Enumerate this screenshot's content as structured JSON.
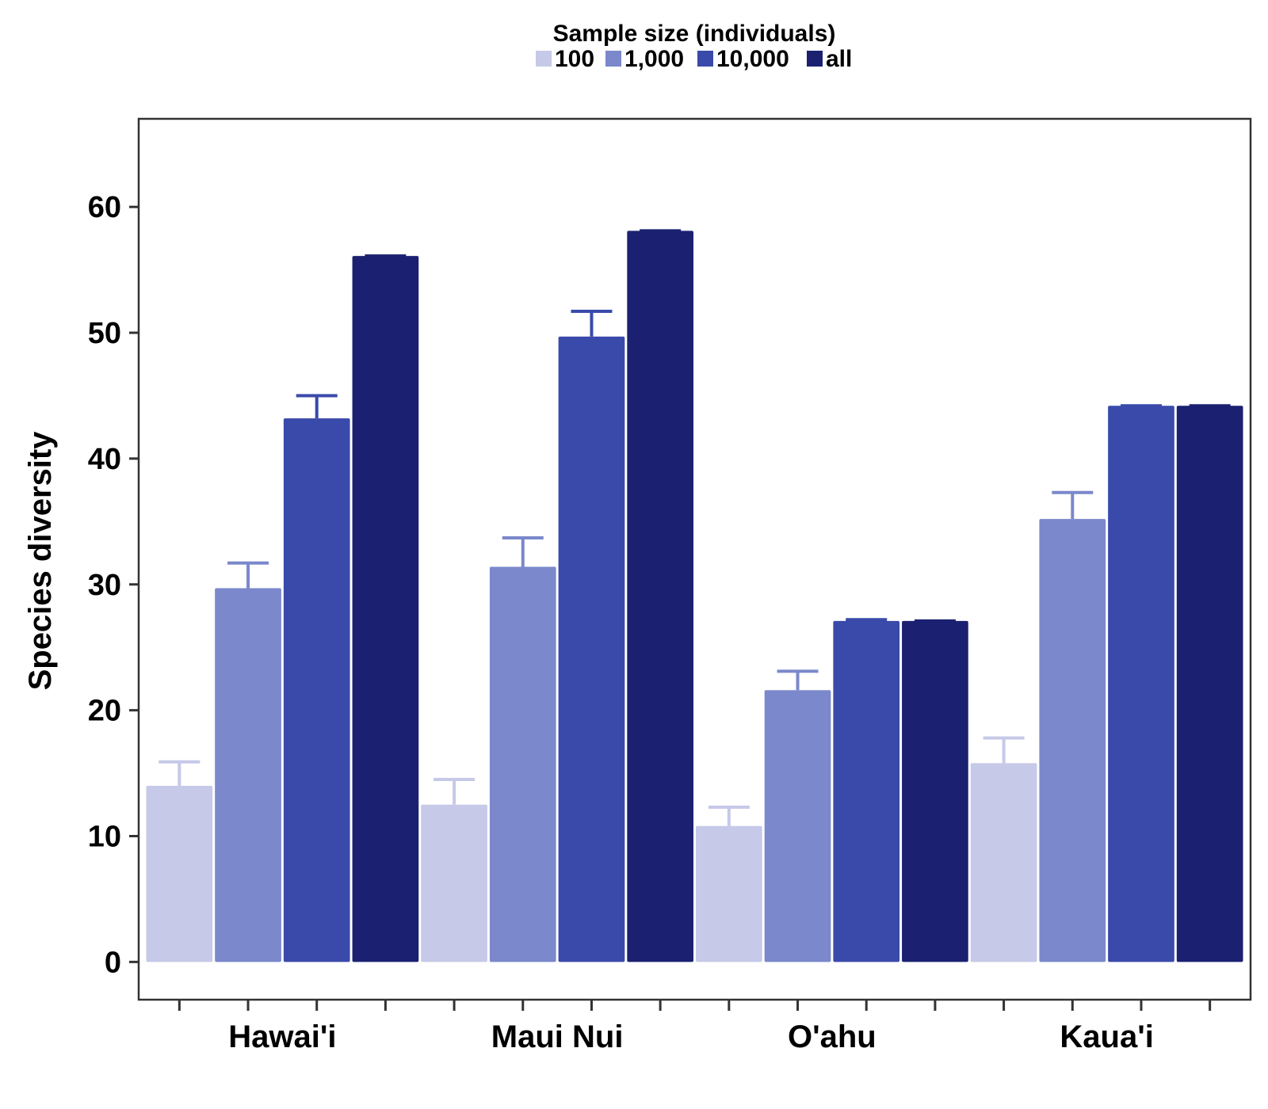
{
  "chart_data": {
    "type": "bar",
    "legend": {
      "title": "Sample size (individuals)",
      "placement": "top-center",
      "entries": [
        "100",
        "1,000",
        "10,000",
        "all"
      ]
    },
    "categories": [
      "Hawai'i",
      "Maui Nui",
      "O'ahu",
      "Kaua'i"
    ],
    "series": [
      {
        "name": "100",
        "color": "#c6c9e8",
        "values": [
          14.0,
          12.5,
          10.8,
          15.8
        ],
        "error_upper": [
          15.9,
          14.5,
          12.3,
          17.8
        ]
      },
      {
        "name": "1,000",
        "color": "#7b88cb",
        "values": [
          29.7,
          31.4,
          21.6,
          35.2
        ],
        "error_upper": [
          31.7,
          33.7,
          23.1,
          37.3
        ]
      },
      {
        "name": "10,000",
        "color": "#3a4aaa",
        "values": [
          43.2,
          49.7,
          27.1,
          44.2
        ],
        "error_upper": [
          45.0,
          51.7,
          27.2,
          44.2
        ]
      },
      {
        "name": "all",
        "color": "#1b2170",
        "values": [
          56.1,
          58.1,
          27.1,
          44.2
        ],
        "error_upper": [
          56.1,
          58.1,
          27.1,
          44.2
        ]
      }
    ],
    "xlabel": "",
    "ylabel": "Species diversity",
    "ylim": [
      -3,
      67
    ],
    "yticks": [
      0,
      10,
      20,
      30,
      40,
      50,
      60
    ],
    "grid": false,
    "axis_color": "#333333"
  }
}
